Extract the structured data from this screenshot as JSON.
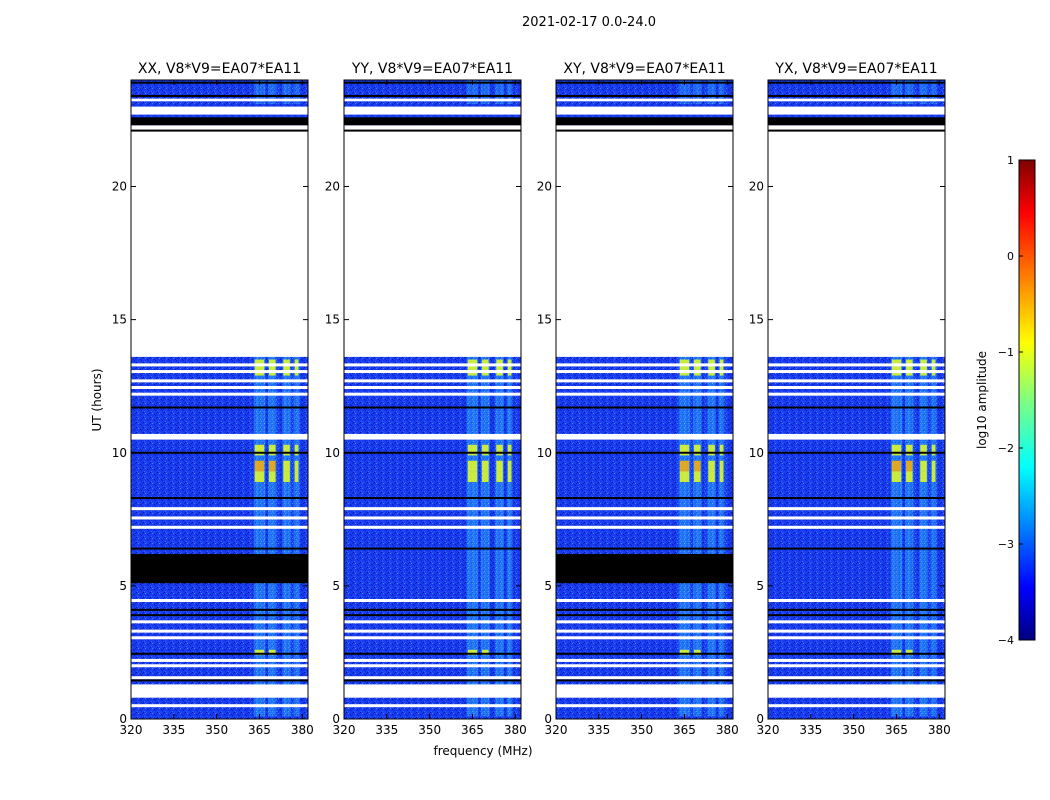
{
  "chart_data": {
    "type": "heatmap",
    "suptitle": "2021-02-17 0.0-24.0",
    "xlabel": "frequency (MHz)",
    "ylabel": "UT (hours)",
    "xlim": [
      320,
      382
    ],
    "ylim": [
      0,
      24
    ],
    "xticks": [
      320,
      335,
      350,
      365,
      380
    ],
    "yticks": [
      0,
      5,
      10,
      15,
      20
    ],
    "panels": [
      {
        "title": "XX, V8*V9=EA07*EA11",
        "polarization": "XX"
      },
      {
        "title": "YY, V8*V9=EA07*EA11",
        "polarization": "YY"
      },
      {
        "title": "XY, V8*V9=EA07*EA11",
        "polarization": "XY"
      },
      {
        "title": "YX, V8*V9=EA07*EA11",
        "polarization": "YX"
      }
    ],
    "empty_time_ranges_h": [
      [
        13.6,
        22.3
      ],
      [
        22.7,
        23.0
      ],
      [
        23.2,
        23.3
      ],
      [
        0.8,
        1.3
      ]
    ],
    "flagged_black_ranges_h": [
      [
        22.3,
        22.6
      ],
      [
        5.1,
        6.2
      ]
    ],
    "colorbar": {
      "label": "log10 amplitude",
      "range": [
        -4,
        1
      ],
      "ticks": [
        "1",
        "0",
        "−1",
        "−2",
        "−3",
        "−4"
      ],
      "colormap": "jet"
    },
    "rfi_bands_mhz": [
      [
        363,
        367
      ],
      [
        368,
        371
      ],
      [
        373,
        376
      ],
      [
        377,
        379
      ]
    ],
    "strong_rfi_times_h": [
      [
        12.9,
        13.5
      ],
      [
        9.9,
        10.3
      ],
      [
        9.3,
        9.7
      ],
      [
        8.9,
        9.3
      ],
      [
        2.4,
        2.6
      ]
    ]
  }
}
